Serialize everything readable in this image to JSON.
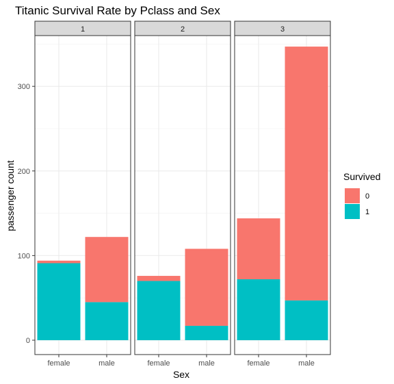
{
  "chart_data": {
    "type": "bar",
    "stacked": true,
    "facet_variable": "Pclass",
    "title": "Titanic Survival Rate by Pclass and Sex",
    "xlabel": "Sex",
    "ylabel": "passenger count",
    "ylim": [
      -17,
      360
    ],
    "yticks": [
      0,
      100,
      200,
      300
    ],
    "grid": true,
    "legend": {
      "title": "Survived",
      "position": "right",
      "items": [
        {
          "label": "0",
          "color": "#F8766D"
        },
        {
          "label": "1",
          "color": "#00BFC4"
        }
      ]
    },
    "categories": [
      "female",
      "male"
    ],
    "panels": [
      {
        "label": "1",
        "series": [
          {
            "name": "1",
            "values": [
              91,
              45
            ]
          },
          {
            "name": "0",
            "values": [
              3,
              77
            ]
          }
        ]
      },
      {
        "label": "2",
        "series": [
          {
            "name": "1",
            "values": [
              70,
              17
            ]
          },
          {
            "name": "0",
            "values": [
              6,
              91
            ]
          }
        ]
      },
      {
        "label": "3",
        "series": [
          {
            "name": "1",
            "values": [
              72,
              47
            ]
          },
          {
            "name": "0",
            "values": [
              72,
              300
            ]
          }
        ]
      }
    ]
  }
}
